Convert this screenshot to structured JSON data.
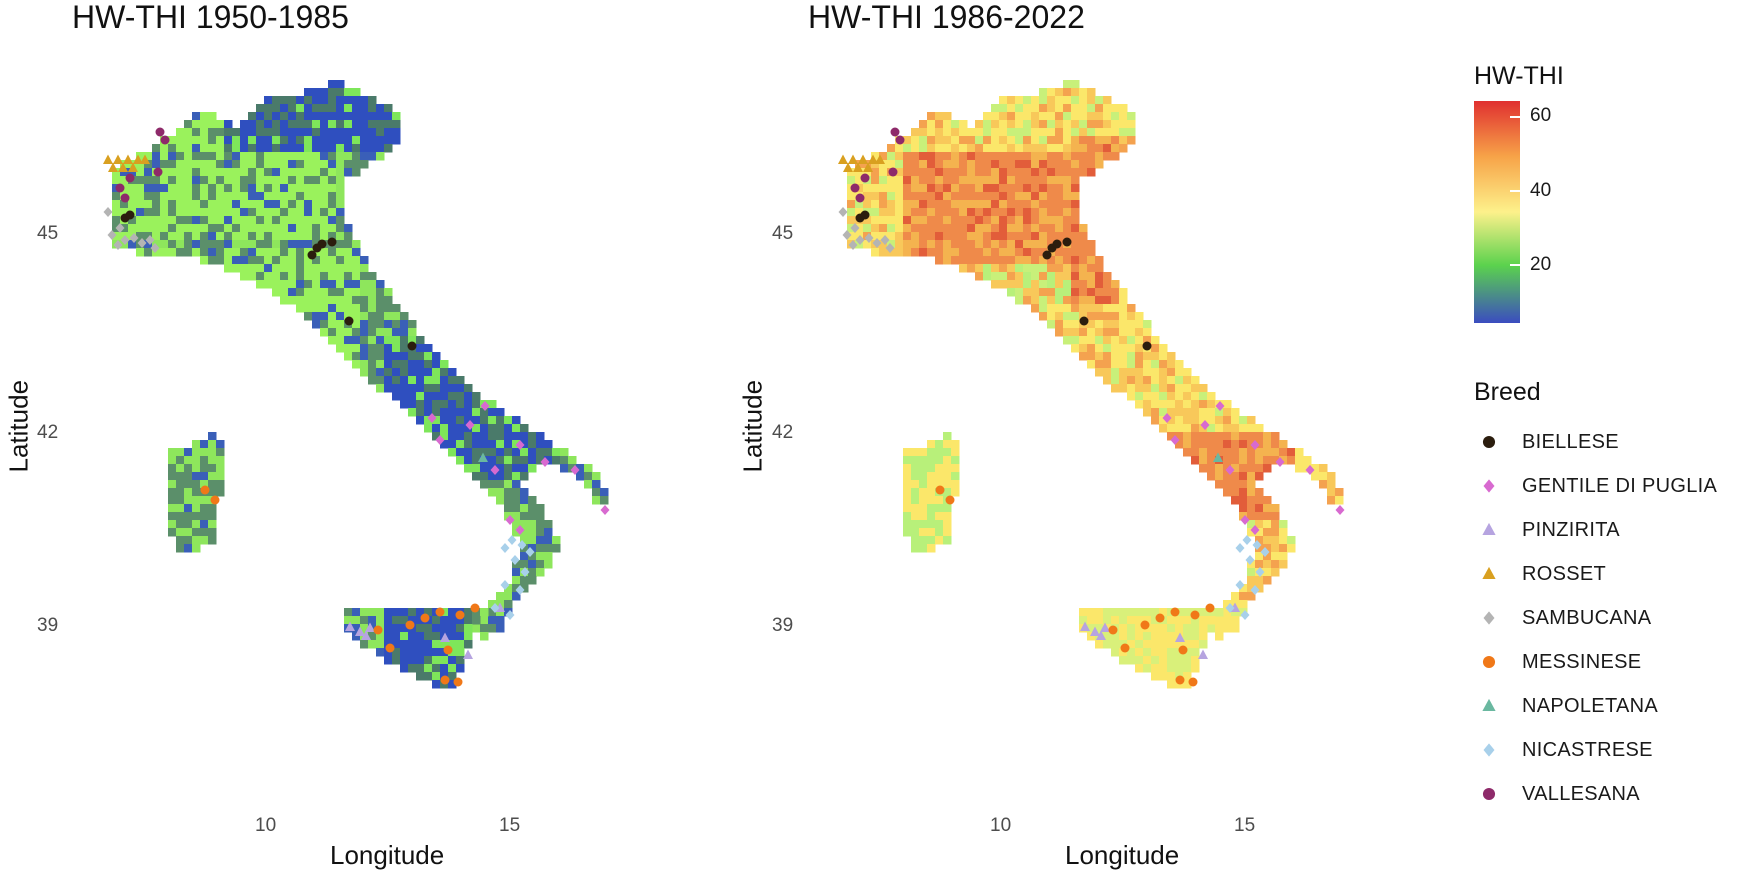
{
  "panels": [
    {
      "title": "HW-THI 1950-1985",
      "palette": "cool"
    },
    {
      "title": "HW-THI 1986-2022",
      "palette": "warm"
    }
  ],
  "axes": {
    "xlabel": "Longitude",
    "ylabel": "Latitude",
    "xticks": [
      "10",
      "15"
    ],
    "yticks": [
      "45",
      "42",
      "39"
    ]
  },
  "colorbar": {
    "title": "HW-THI",
    "labels": [
      "60",
      "40",
      "20"
    ],
    "colors": [
      "#3b4cc0",
      "#5bd24d",
      "#fdf18b",
      "#f7a348",
      "#e03030"
    ]
  },
  "breed_legend": {
    "title": "Breed",
    "items": [
      {
        "label": "BIELLESE",
        "shape": "circle",
        "color": "#2b1d0e"
      },
      {
        "label": "GENTILE DI PUGLIA",
        "shape": "diamond",
        "color": "#d86ad0"
      },
      {
        "label": "PINZIRITA",
        "shape": "triangle",
        "color": "#b6a4e0"
      },
      {
        "label": "ROSSET",
        "shape": "triangle",
        "color": "#d9a020"
      },
      {
        "label": "SAMBUCANA",
        "shape": "diamond",
        "color": "#b4b4b4"
      },
      {
        "label": "MESSINESE",
        "shape": "circle",
        "color": "#f07818"
      },
      {
        "label": "NAPOLETANA",
        "shape": "triangle",
        "color": "#6ab8a0"
      },
      {
        "label": "NICASTRESE",
        "shape": "diamond",
        "color": "#a8d0ea"
      },
      {
        "label": "VALLESANA",
        "shape": "circle",
        "color": "#8e2a6a"
      }
    ]
  }
}
